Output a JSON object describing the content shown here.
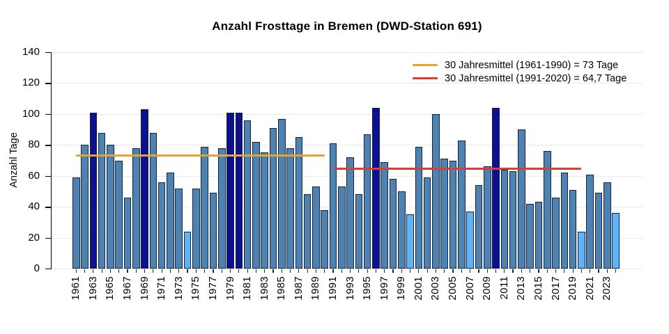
{
  "title": "Anzahl Frosttage in Bremen (DWD-Station 691)",
  "y_axis": {
    "label": "Anzahl Tage",
    "ticks": [
      0,
      20,
      40,
      60,
      80,
      100,
      120,
      140
    ]
  },
  "x_axis": {
    "labels": [
      "1961",
      "1963",
      "1965",
      "1967",
      "1969",
      "1971",
      "1973",
      "1975",
      "1977",
      "1979",
      "1981",
      "1983",
      "1985",
      "1987",
      "1989",
      "1991",
      "1993",
      "1995",
      "1997",
      "1999",
      "2001",
      "2003",
      "2005",
      "2007",
      "2009",
      "2011",
      "2013",
      "2015",
      "2017",
      "2019",
      "2021",
      "2023"
    ]
  },
  "chart_data": {
    "type": "bar",
    "title": "Anzahl Frosttage in Bremen (DWD-Station 691)",
    "xlabel": "",
    "ylabel": "Anzahl Tage",
    "ylim": [
      0,
      140
    ],
    "grid": "horizontal",
    "categories": [
      1961,
      1962,
      1963,
      1964,
      1965,
      1966,
      1967,
      1968,
      1969,
      1970,
      1971,
      1972,
      1973,
      1974,
      1975,
      1976,
      1977,
      1978,
      1979,
      1980,
      1981,
      1982,
      1983,
      1984,
      1985,
      1986,
      1987,
      1988,
      1989,
      1990,
      1991,
      1992,
      1993,
      1994,
      1995,
      1996,
      1997,
      1998,
      1999,
      2000,
      2001,
      2002,
      2003,
      2004,
      2005,
      2006,
      2007,
      2008,
      2009,
      2010,
      2011,
      2012,
      2013,
      2014,
      2015,
      2016,
      2017,
      2018,
      2019,
      2020,
      2021,
      2022,
      2023,
      2024
    ],
    "values": [
      59,
      80,
      101,
      88,
      80,
      70,
      46,
      78,
      103,
      88,
      56,
      62,
      52,
      24,
      52,
      79,
      49,
      78,
      101,
      101,
      96,
      82,
      75,
      91,
      97,
      78,
      85,
      48,
      53,
      38,
      81,
      53,
      72,
      48,
      87,
      104,
      69,
      58,
      50,
      35,
      79,
      59,
      100,
      71,
      70,
      83,
      37,
      54,
      66,
      104,
      64,
      63,
      90,
      42,
      43,
      76,
      46,
      62,
      51,
      24,
      61,
      49,
      56,
      36
    ],
    "highlight_dark_years": [
      1963,
      1969,
      1979,
      1980,
      1996,
      2010
    ],
    "highlight_light_years": [
      1974,
      2000,
      2007,
      2020,
      2024
    ],
    "mean_lines": [
      {
        "label": "30 Jahresmittel (1961-1990) = 73 Tage",
        "value": 73,
        "from_year": 1961,
        "to_year": 1990,
        "color": "#e7a42c"
      },
      {
        "label": "30 Jahresmittel (1991-2020) = 64,7 Tage",
        "value": 64.7,
        "from_year": 1991,
        "to_year": 2020,
        "color": "#e23b33"
      }
    ],
    "legend_position": "top-right"
  },
  "colors": {
    "bar_normal": "#4e82b0",
    "bar_dark": "#0d108f",
    "bar_light": "#5fb3f7",
    "bar_border": "#13233f",
    "mean_1961_1990": "#e7a42c",
    "mean_1991_2020": "#e23b33",
    "gridline": "#e8e8e8",
    "axis": "#000000"
  }
}
